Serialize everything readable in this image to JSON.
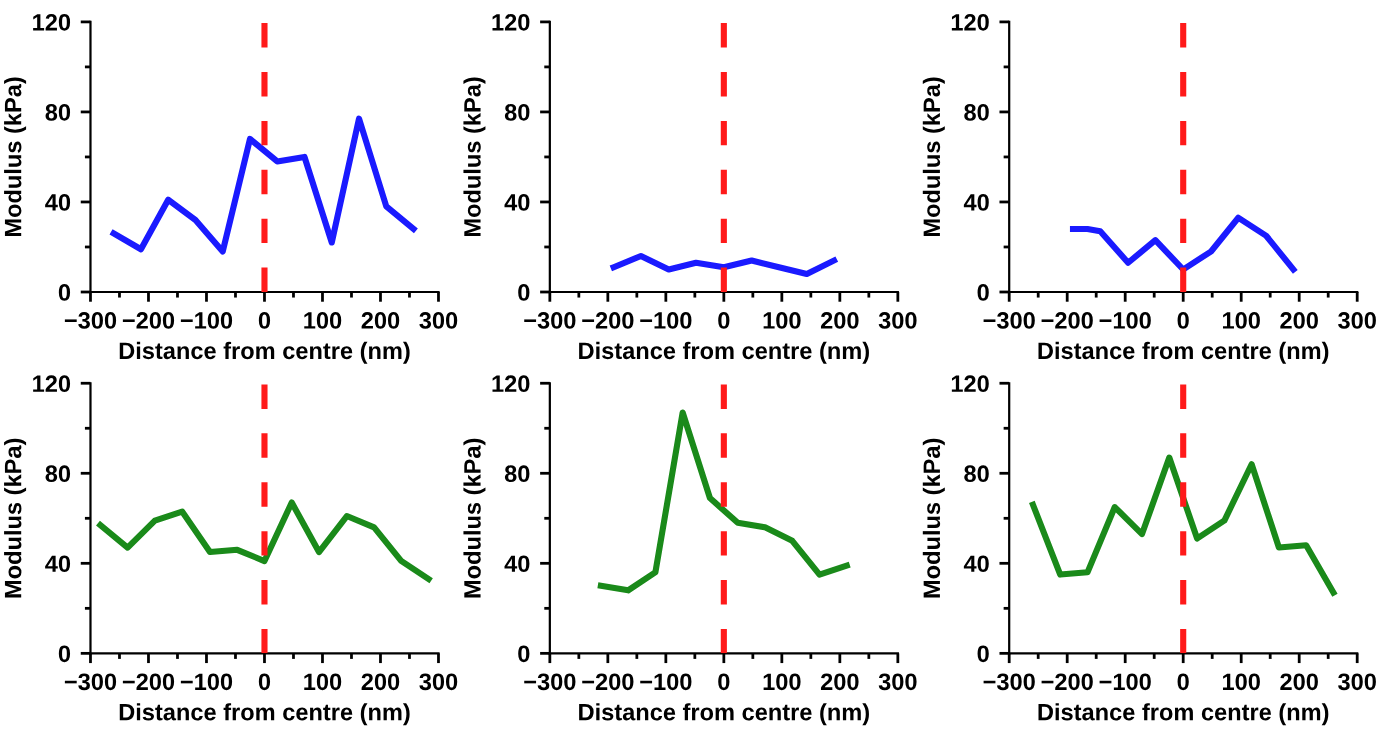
{
  "chart_data": [
    {
      "type": "line",
      "xlabel": "Distance from centre (nm)",
      "ylabel": "Modulus (kPa)",
      "xlim": [
        -300,
        300
      ],
      "ylim": [
        0,
        120
      ],
      "xticks": [
        {
          "value": -300,
          "label": "−300"
        },
        {
          "value": -200,
          "label": "−200"
        },
        {
          "value": -100,
          "label": "−100"
        },
        0,
        100,
        200,
        300
      ],
      "yticks": [
        0,
        40,
        80,
        120
      ],
      "ref_lines": [
        {
          "axis": "x",
          "value": 0,
          "color": "#ff1a1a",
          "line_style": "dashed"
        }
      ],
      "series": [
        {
          "color": "#1a1aff",
          "x": [
            -260,
            -213,
            -166,
            -119,
            -72,
            -25,
            22,
            69,
            116,
            163,
            210,
            257
          ],
          "values": [
            26,
            19,
            41,
            32,
            18,
            68,
            58,
            60,
            22,
            77,
            38,
            28
          ]
        }
      ]
    },
    {
      "type": "line",
      "xlabel": "Distance from centre (nm)",
      "ylabel": "Modulus (kPa)",
      "xlim": [
        -300,
        300
      ],
      "ylim": [
        0,
        120
      ],
      "xticks": [
        {
          "value": -300,
          "label": "−300"
        },
        {
          "value": -200,
          "label": "−200"
        },
        {
          "value": -100,
          "label": "−100"
        },
        0,
        100,
        200,
        300
      ],
      "yticks": [
        0,
        40,
        80,
        120
      ],
      "ref_lines": [
        {
          "axis": "x",
          "value": 0,
          "color": "#ff1a1a",
          "line_style": "dashed"
        }
      ],
      "series": [
        {
          "color": "#1a1aff",
          "x": [
            -190,
            -143,
            -95,
            -48,
            0,
            48,
            95,
            143,
            190
          ],
          "values": [
            11,
            16,
            10,
            13,
            11,
            14,
            11,
            8,
            14
          ]
        }
      ]
    },
    {
      "type": "line",
      "xlabel": "Distance from centre (nm)",
      "ylabel": "Modulus (kPa)",
      "xlim": [
        -300,
        300
      ],
      "ylim": [
        0,
        120
      ],
      "xticks": [
        {
          "value": -300,
          "label": "−300"
        },
        {
          "value": -200,
          "label": "−200"
        },
        {
          "value": -100,
          "label": "−100"
        },
        0,
        100,
        200,
        300
      ],
      "yticks": [
        0,
        40,
        80,
        120
      ],
      "ref_lines": [
        {
          "axis": "x",
          "value": 0,
          "color": "#ff1a1a",
          "line_style": "dashed"
        }
      ],
      "series": [
        {
          "color": "#1a1aff",
          "x": [
            -190,
            -165,
            -143,
            -95,
            -48,
            0,
            48,
            95,
            143,
            190
          ],
          "values": [
            28,
            28,
            27,
            13,
            23,
            10,
            18,
            33,
            25,
            10
          ]
        }
      ]
    },
    {
      "type": "line",
      "xlabel": "Distance from centre (nm)",
      "ylabel": "Modulus (kPa)",
      "xlim": [
        -300,
        300
      ],
      "ylim": [
        0,
        120
      ],
      "xticks": [
        {
          "value": -300,
          "label": "−300"
        },
        {
          "value": -200,
          "label": "−200"
        },
        {
          "value": -100,
          "label": "−100"
        },
        0,
        100,
        200,
        300
      ],
      "yticks": [
        0,
        40,
        80,
        120
      ],
      "ref_lines": [
        {
          "axis": "x",
          "value": 0,
          "color": "#ff1a1a",
          "line_style": "dashed"
        }
      ],
      "series": [
        {
          "color": "#1a8a1a",
          "x": [
            -283,
            -236,
            -189,
            -142,
            -94,
            -47,
            0,
            47,
            94,
            142,
            189,
            236,
            283
          ],
          "values": [
            57,
            47,
            59,
            63,
            45,
            46,
            41,
            67,
            45,
            61,
            56,
            41,
            33
          ]
        }
      ]
    },
    {
      "type": "line",
      "xlabel": "Distance from centre (nm)",
      "ylabel": "Modulus (kPa)",
      "xlim": [
        -300,
        300
      ],
      "ylim": [
        0,
        120
      ],
      "xticks": [
        {
          "value": -300,
          "label": "−300"
        },
        {
          "value": -200,
          "label": "−200"
        },
        {
          "value": -100,
          "label": "−100"
        },
        0,
        100,
        200,
        300
      ],
      "yticks": [
        0,
        40,
        80,
        120
      ],
      "ref_lines": [
        {
          "axis": "x",
          "value": 0,
          "color": "#ff1a1a",
          "line_style": "dashed"
        }
      ],
      "series": [
        {
          "color": "#1a8a1a",
          "x": [
            -212,
            -165,
            -118,
            -71,
            -24,
            24,
            71,
            118,
            165,
            212
          ],
          "values": [
            30,
            28,
            36,
            107,
            69,
            58,
            56,
            50,
            35,
            39
          ]
        }
      ]
    },
    {
      "type": "line",
      "xlabel": "Distance from centre (nm)",
      "ylabel": "Modulus (kPa)",
      "xlim": [
        -300,
        300
      ],
      "ylim": [
        0,
        120
      ],
      "xticks": [
        {
          "value": -300,
          "label": "−300"
        },
        {
          "value": -200,
          "label": "−200"
        },
        {
          "value": -100,
          "label": "−100"
        },
        0,
        100,
        200,
        300
      ],
      "yticks": [
        0,
        40,
        80,
        120
      ],
      "ref_lines": [
        {
          "axis": "x",
          "value": 0,
          "color": "#ff1a1a",
          "line_style": "dashed"
        }
      ],
      "series": [
        {
          "color": "#1a8a1a",
          "x": [
            -259,
            -212,
            -165,
            -118,
            -71,
            -24,
            24,
            71,
            118,
            165,
            212,
            259
          ],
          "values": [
            66,
            35,
            36,
            65,
            53,
            87,
            51,
            59,
            84,
            47,
            48,
            27
          ]
        }
      ]
    }
  ]
}
